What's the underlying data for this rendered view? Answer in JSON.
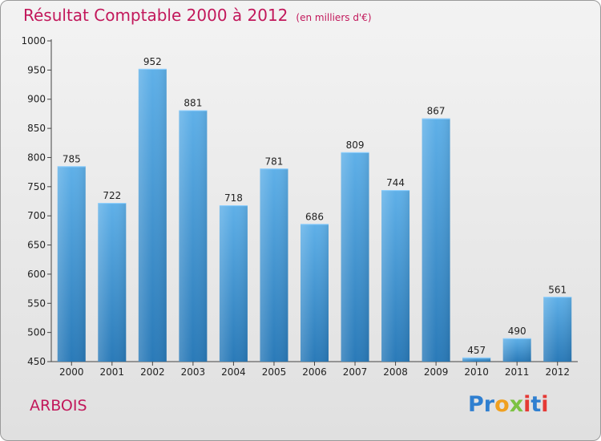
{
  "chart_data": {
    "type": "bar",
    "title": "Résultat Comptable 2000 à 2012",
    "subtitle": "(en milliers d'€)",
    "categories": [
      "2000",
      "2001",
      "2002",
      "2003",
      "2004",
      "2005",
      "2006",
      "2007",
      "2008",
      "2009",
      "2010",
      "2011",
      "2012"
    ],
    "values": [
      785,
      722,
      952,
      881,
      718,
      781,
      686,
      809,
      744,
      867,
      457,
      490,
      561
    ],
    "ylim": [
      450,
      1000
    ],
    "yticks": [
      450,
      500,
      550,
      600,
      650,
      700,
      750,
      800,
      850,
      900,
      950,
      1000
    ],
    "xlabel": "",
    "ylabel": "",
    "grid": false,
    "colors": {
      "bar_top": "#5fb0e8",
      "bar_bottom": "#2a7ab8",
      "title": "#c2185b"
    }
  },
  "place": "ARBOIS",
  "logo": {
    "letters": [
      {
        "ch": "P",
        "color": "#2f7fd0"
      },
      {
        "ch": "r",
        "color": "#2f7fd0"
      },
      {
        "ch": "o",
        "color": "#f0a020"
      },
      {
        "ch": "x",
        "color": "#7cc242"
      },
      {
        "ch": "i",
        "color": "#e53935"
      },
      {
        "ch": "t",
        "color": "#2f7fd0"
      },
      {
        "ch": "i",
        "color": "#e53935"
      }
    ]
  }
}
